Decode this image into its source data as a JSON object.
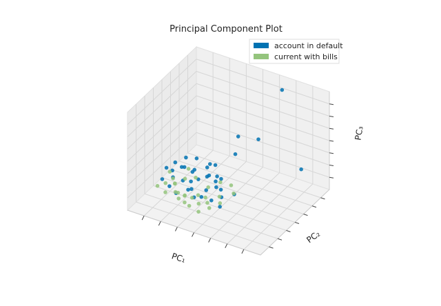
{
  "chart_data": {
    "type": "scatter3d",
    "title": "Principal Component Plot",
    "xlabel": "PC₁",
    "ylabel": "PC₂",
    "zlabel": "PC₃",
    "xlim": [
      -4,
      6
    ],
    "ylim": [
      -4,
      6
    ],
    "zlim": [
      -4,
      6
    ],
    "grid": true,
    "legend": "upper right",
    "series": [
      {
        "name": "account in default",
        "color": "#0072B2",
        "x": [
          -3.2,
          -2.8,
          -2.5,
          -2.1,
          -1.8,
          -1.5,
          -1.2,
          -0.9,
          -0.6,
          -0.3,
          0.0,
          0.3,
          0.6,
          0.9,
          1.2,
          -3.0,
          -2.6,
          -2.2,
          -1.9,
          -1.6,
          -1.3,
          -1.0,
          -0.7,
          -0.4,
          -0.1,
          0.2,
          0.5,
          -2.4,
          -1.7,
          -0.8,
          0.4,
          1.5,
          1.8,
          -3.4,
          -0.5,
          2.7,
          4.4,
          1.7,
          0.7,
          1.0
        ],
        "y": [
          -0.5,
          0.2,
          -0.8,
          0.6,
          -0.2,
          0.9,
          -0.6,
          0.3,
          -0.9,
          0.7,
          -0.3,
          0.5,
          -0.7,
          0.1,
          -0.4,
          1.0,
          -0.1,
          0.4,
          -1.0,
          0.8,
          0.0,
          -0.5,
          1.2,
          0.6,
          -0.8,
          0.9,
          0.2,
          1.4,
          1.6,
          1.8,
          1.1,
          -1.2,
          0.3,
          0.5,
          2.0,
          5.5,
          5.0,
          4.0,
          3.0,
          2.0
        ],
        "z": [
          -2.8,
          -2.2,
          -3.0,
          -1.8,
          -2.5,
          -2.0,
          -2.9,
          -2.3,
          -3.2,
          -1.9,
          -2.6,
          -2.1,
          -3.1,
          -2.4,
          -2.7,
          -2.0,
          -2.6,
          -1.7,
          -3.3,
          -2.2,
          -2.5,
          -2.8,
          -1.6,
          -2.0,
          -3.0,
          -1.9,
          -2.4,
          -1.5,
          -1.4,
          -1.7,
          -2.2,
          -3.0,
          -2.6,
          -2.4,
          -1.8,
          5.0,
          -2.0,
          0.5,
          1.0,
          0.0
        ]
      },
      {
        "name": "current with bills",
        "color": "#94C47D",
        "x": [
          -3.3,
          -2.9,
          -2.6,
          -2.3,
          -2.0,
          -1.7,
          -1.4,
          -1.1,
          -0.8,
          -0.5,
          -0.2,
          0.1,
          0.4,
          0.7,
          1.0,
          1.3,
          -3.1,
          -2.7,
          -2.4,
          -1.9,
          -1.5,
          -1.0,
          -0.6,
          0.0,
          0.5,
          1.1,
          1.6,
          -2.0,
          -1.2,
          0.2
        ],
        "y": [
          -1.0,
          -0.6,
          -1.2,
          -0.4,
          -0.9,
          -1.1,
          -0.7,
          -1.3,
          -0.8,
          -0.5,
          -1.0,
          -0.6,
          -0.9,
          -1.2,
          -0.3,
          -0.8,
          0.4,
          0.1,
          -0.2,
          0.3,
          -1.4,
          -1.5,
          -1.6,
          0.0,
          0.8,
          1.2,
          0.6,
          1.0,
          0.5,
          -1.8
        ],
        "z": [
          -3.2,
          -3.0,
          -3.4,
          -2.9,
          -3.3,
          -3.1,
          -3.5,
          -3.0,
          -3.4,
          -3.2,
          -3.6,
          -3.1,
          -3.3,
          -3.5,
          -2.8,
          -3.0,
          -2.6,
          -2.9,
          -3.1,
          -2.7,
          -3.4,
          -3.5,
          -3.6,
          -2.5,
          -2.3,
          -2.6,
          -2.8,
          -2.2,
          -2.4,
          -3.7
        ]
      }
    ]
  }
}
